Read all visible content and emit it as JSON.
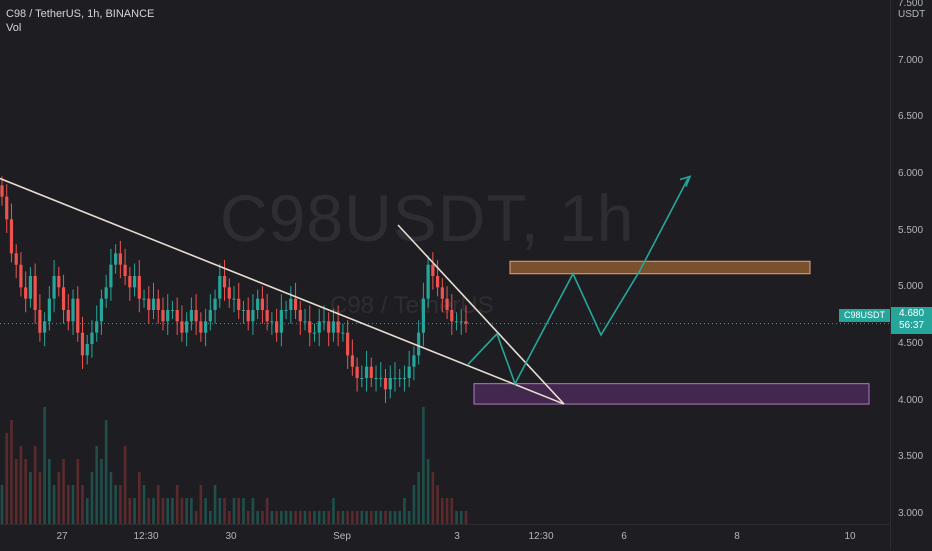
{
  "header": {
    "symbol_line": "C98 / TetherUS, 1h, BINANCE",
    "volume_label": "Vol"
  },
  "watermark": {
    "ticker": "C98USDT, 1h",
    "name": "C98 / TetherUS"
  },
  "price_axis": {
    "unit": "USDT",
    "ticks": [
      "7.500",
      "7.000",
      "6.500",
      "6.000",
      "5.500",
      "5.000",
      "4.500",
      "4.000",
      "3.500",
      "3.000"
    ]
  },
  "time_axis": {
    "ticks": [
      "27",
      "12:30",
      "30",
      "Sep",
      "3",
      "12:30",
      "6",
      "8",
      "10"
    ]
  },
  "current_price": {
    "symbol_tag": "C98USDT",
    "price": "4.680",
    "countdown": "56:37",
    "color": "#26a69a"
  },
  "chart_data": {
    "type": "candlestick",
    "ylim": [
      2.7,
      7.5
    ],
    "up_color": "#26a69a",
    "down_color": "#ef5350",
    "close_prices": [
      5.8,
      5.6,
      5.3,
      5.2,
      5.0,
      4.9,
      5.1,
      4.8,
      4.6,
      4.7,
      4.9,
      5.1,
      5.0,
      4.8,
      4.7,
      4.9,
      4.6,
      4.4,
      4.5,
      4.6,
      4.7,
      4.9,
      5.0,
      5.2,
      5.3,
      5.2,
      5.1,
      5.0,
      5.1,
      4.9,
      4.9,
      4.8,
      4.9,
      4.8,
      4.7,
      4.8,
      4.8,
      4.7,
      4.6,
      4.7,
      4.8,
      4.7,
      4.6,
      4.7,
      4.8,
      4.9,
      5.1,
      5.0,
      4.9,
      4.9,
      4.8,
      4.8,
      4.7,
      4.8,
      4.9,
      4.8,
      4.7,
      4.7,
      4.6,
      4.8,
      4.8,
      4.9,
      4.8,
      4.7,
      4.7,
      4.6,
      4.6,
      4.7,
      4.7,
      4.6,
      4.7,
      4.6,
      4.6,
      4.4,
      4.3,
      4.2,
      4.2,
      4.3,
      4.2,
      4.2,
      4.2,
      4.1,
      4.2,
      4.2,
      4.2,
      4.2,
      4.3,
      4.4,
      4.6,
      4.9,
      5.2,
      5.1,
      5.0,
      4.9,
      4.8,
      4.7,
      4.7,
      4.7,
      4.68
    ],
    "volume_relative": [
      0.3,
      0.7,
      0.8,
      0.5,
      0.6,
      0.5,
      0.4,
      0.6,
      0.4,
      0.9,
      0.5,
      0.3,
      0.4,
      0.5,
      0.3,
      0.3,
      0.5,
      0.3,
      0.2,
      0.4,
      0.6,
      0.5,
      0.8,
      0.4,
      0.3,
      0.3,
      0.6,
      0.2,
      0.2,
      0.4,
      0.3,
      0.2,
      0.2,
      0.3,
      0.2,
      0.2,
      0.2,
      0.3,
      0.2,
      0.2,
      0.2,
      0.1,
      0.3,
      0.2,
      0.1,
      0.3,
      0.2,
      0.2,
      0.1,
      0.2,
      0.2,
      0.2,
      0.1,
      0.2,
      0.1,
      0.1,
      0.2,
      0.1,
      0.1,
      0.1,
      0.1,
      0.1,
      0.1,
      0.1,
      0.1,
      0.1,
      0.1,
      0.1,
      0.1,
      0.1,
      0.2,
      0.1,
      0.1,
      0.1,
      0.1,
      0.1,
      0.1,
      0.1,
      0.1,
      0.1,
      0.1,
      0.1,
      0.1,
      0.1,
      0.1,
      0.2,
      0.1,
      0.3,
      0.4,
      0.9,
      0.5,
      0.4,
      0.3,
      0.2,
      0.2,
      0.2,
      0.1,
      0.1,
      0.1
    ],
    "zones": [
      {
        "low": 5.12,
        "high": 5.23,
        "color": "#8a5a2e"
      },
      {
        "low": 3.97,
        "high": 4.15,
        "color": "#4a2a55"
      }
    ],
    "projection_color": "#26a69a"
  }
}
